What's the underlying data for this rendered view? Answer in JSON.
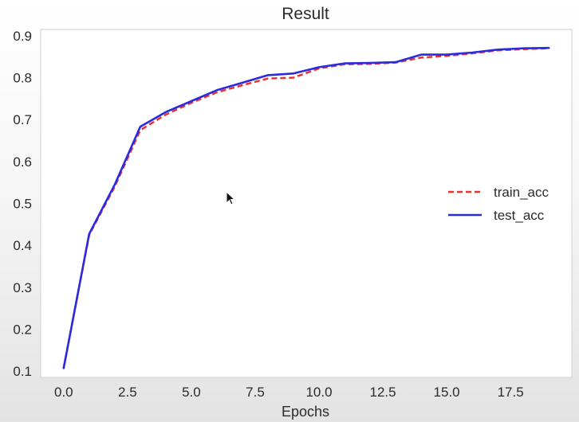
{
  "chart_data": {
    "type": "line",
    "title": "Result",
    "xlabel": "Epochs",
    "ylabel": "",
    "xlim": [
      -0.9,
      19.9
    ],
    "ylim": [
      0.085,
      0.915
    ],
    "xticks": [
      "0.0",
      "2.5",
      "5.0",
      "7.5",
      "10.0",
      "12.5",
      "15.0",
      "17.5"
    ],
    "xtick_values": [
      0,
      2.5,
      5,
      7.5,
      10,
      12.5,
      15,
      17.5
    ],
    "yticks": [
      "0.1",
      "0.2",
      "0.3",
      "0.4",
      "0.5",
      "0.6",
      "0.7",
      "0.8",
      "0.9"
    ],
    "ytick_values": [
      0.1,
      0.2,
      0.3,
      0.4,
      0.5,
      0.6,
      0.7,
      0.8,
      0.9
    ],
    "grid": false,
    "legend_position": "right",
    "x": [
      0,
      1,
      2,
      3,
      4,
      5,
      6,
      7,
      8,
      9,
      10,
      11,
      12,
      13,
      14,
      15,
      16,
      17,
      18,
      19
    ],
    "series": [
      {
        "name": "train_acc",
        "color": "#e8322e",
        "style": "dashed",
        "values": [
          0.107,
          0.425,
          0.54,
          0.675,
          0.712,
          0.74,
          0.765,
          0.782,
          0.798,
          0.8,
          0.822,
          0.832,
          0.833,
          0.836,
          0.848,
          0.852,
          0.858,
          0.865,
          0.868,
          0.87
        ]
      },
      {
        "name": "test_acc",
        "color": "#2a2ae0",
        "style": "solid",
        "values": [
          0.107,
          0.427,
          0.545,
          0.683,
          0.718,
          0.744,
          0.77,
          0.788,
          0.806,
          0.81,
          0.825,
          0.834,
          0.835,
          0.837,
          0.855,
          0.855,
          0.86,
          0.867,
          0.87,
          0.871
        ]
      }
    ]
  }
}
